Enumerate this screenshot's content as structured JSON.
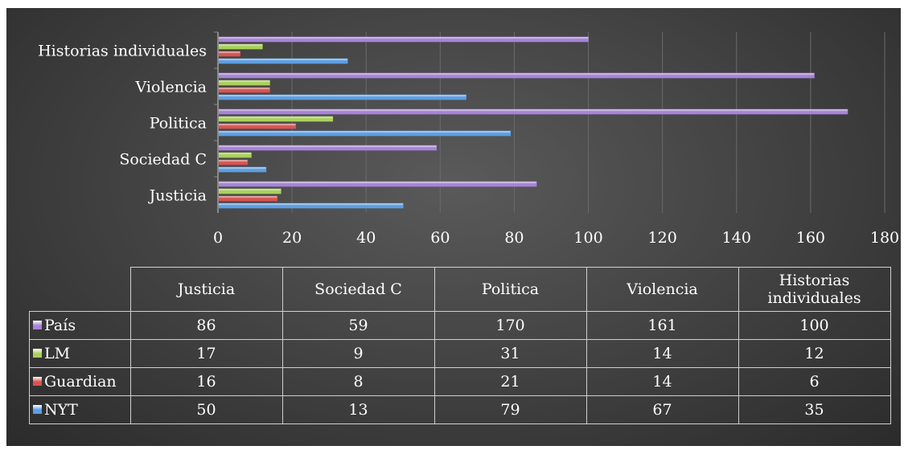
{
  "chart_data": {
    "type": "bar",
    "orientation": "horizontal",
    "categories": [
      "Justicia",
      "Sociedad C",
      "Politica",
      "Violencia",
      "Historias individuales"
    ],
    "series": [
      {
        "name": "País",
        "color": "#a783d9",
        "values": [
          86,
          59,
          170,
          161,
          100
        ]
      },
      {
        "name": "LM",
        "color": "#a9d15a",
        "values": [
          17,
          9,
          31,
          14,
          12
        ]
      },
      {
        "name": "Guardian",
        "color": "#d9534f",
        "values": [
          16,
          8,
          21,
          14,
          6
        ]
      },
      {
        "name": "NYT",
        "color": "#5b9ee6",
        "values": [
          50,
          13,
          79,
          67,
          35
        ]
      }
    ],
    "xlim": [
      0,
      180
    ],
    "xticks": [
      0,
      20,
      40,
      60,
      80,
      100,
      120,
      140,
      160,
      180
    ],
    "grid": true,
    "legend": "data-table",
    "title": "",
    "xlabel": "",
    "ylabel": ""
  },
  "table": {
    "headers": [
      "Justicia",
      "Sociedad C",
      "Politica",
      "Violencia",
      "Historias individuales"
    ],
    "rows": [
      {
        "label": "País",
        "color": "#a783d9",
        "values": [
          86,
          59,
          170,
          161,
          100
        ]
      },
      {
        "label": "LM",
        "color": "#a9d15a",
        "values": [
          17,
          9,
          31,
          14,
          12
        ]
      },
      {
        "label": "Guardian",
        "color": "#d9534f",
        "values": [
          16,
          8,
          21,
          14,
          6
        ]
      },
      {
        "label": "NYT",
        "color": "#5b9ee6",
        "values": [
          50,
          13,
          79,
          67,
          35
        ]
      }
    ]
  }
}
